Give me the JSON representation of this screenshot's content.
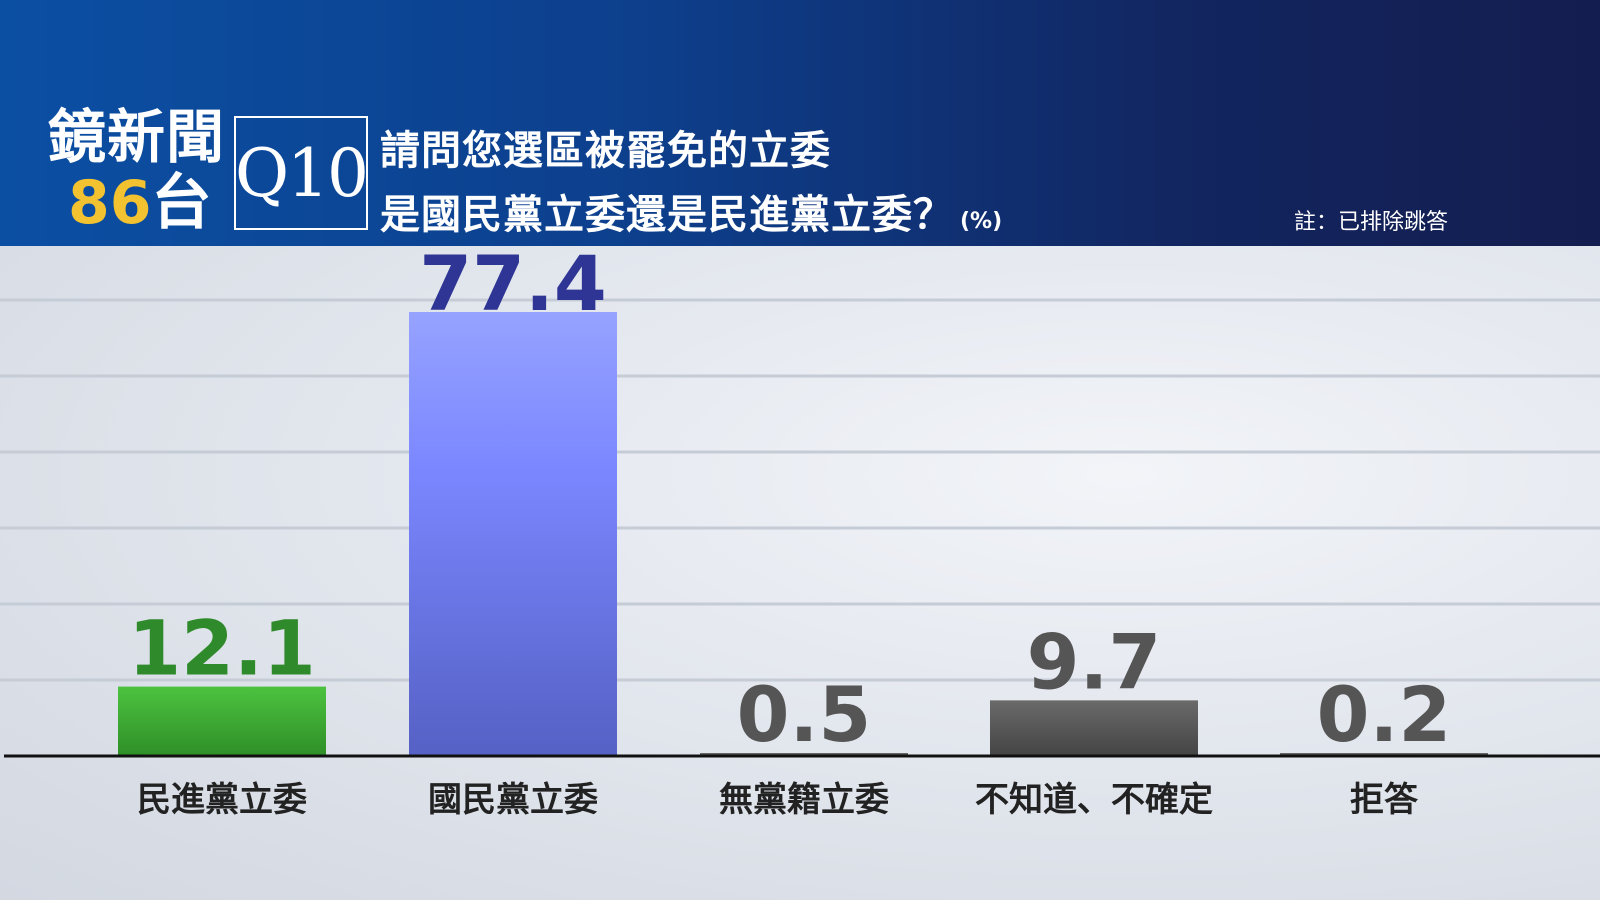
{
  "header": {
    "logo_title": "鏡新聞",
    "logo_channel_number": "86",
    "logo_channel_suffix": "台",
    "question_id": "Q10",
    "question_line1": "請問您選區被罷免的立委",
    "question_line2": "是國民黨立委還是民進黨立委？",
    "unit": "(%)",
    "note": "註：已排除跳答"
  },
  "colors": {
    "header_start": "#0b4fa3",
    "header_end": "#141d4f",
    "logo_accent": "#f2c230",
    "dpp_green": "#3fa535",
    "kmt_blue": "#6b78e6",
    "kmt_label": "#2e3594",
    "other_gray": "#5a5a5a"
  },
  "chart_data": {
    "type": "bar",
    "title": "請問您選區被罷免的立委是國民黨立委還是民進黨立委？",
    "unit": "(%)",
    "categories": [
      "民進黨立委",
      "國民黨立委",
      "無黨籍立委",
      "不知道、不確定",
      "拒答"
    ],
    "values": [
      12.1,
      77.4,
      0.5,
      9.7,
      0.2
    ],
    "value_labels": [
      "12.1",
      "77.4",
      "0.5",
      "9.7",
      "0.2"
    ],
    "bar_colors": [
      "#3fa535",
      "#6b78e6",
      "#5a5a5a",
      "#5a5a5a",
      "#5a5a5a"
    ],
    "label_colors": [
      "#2e8a2a",
      "#2e3594",
      "#555555",
      "#555555",
      "#555555"
    ],
    "ylim": [
      0,
      80
    ],
    "grid": true,
    "legend": "none"
  }
}
